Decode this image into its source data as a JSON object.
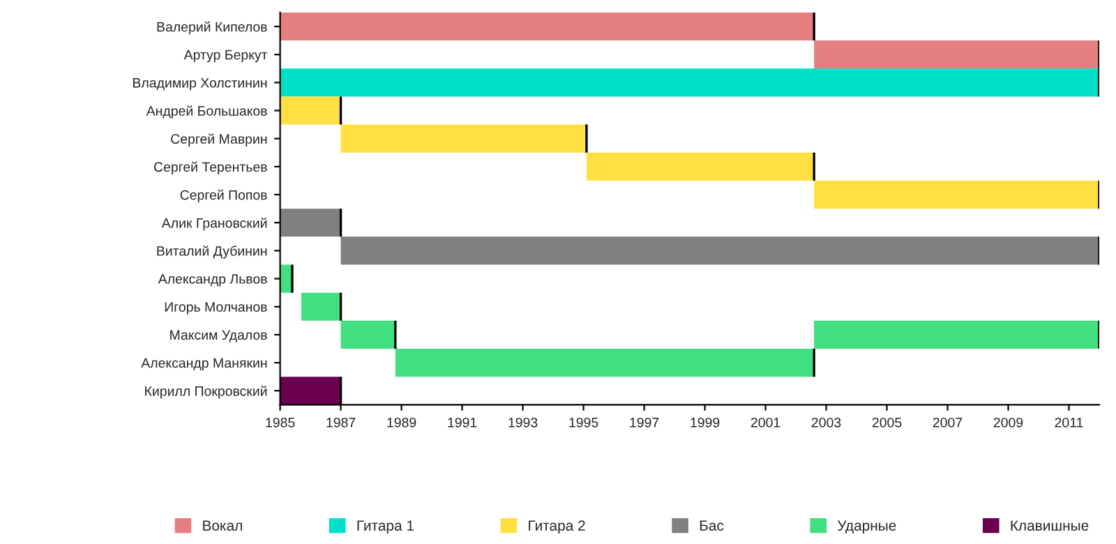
{
  "chart_data": {
    "type": "bar",
    "orientation": "horizontal",
    "categories": [
      "Валерий Кипелов",
      "Артур Беркут",
      "Владимир Холстинин",
      "Андрей Большаков",
      "Сергей Маврин",
      "Сергей Терентьев",
      "Сергей Попов",
      "Алик Грановский",
      "Виталий Дубинин",
      "Александр Львов",
      "Игорь Молчанов",
      "Максим Удалов",
      "Александр Манякин",
      "Кирилл Покровский"
    ],
    "series": [
      {
        "name": "Вокал",
        "color": "#e57f7f",
        "base": [
          1985,
          2002.6,
          null,
          null,
          null,
          null,
          null,
          null,
          null,
          null,
          null,
          null,
          null,
          null
        ],
        "values": [
          17.6,
          9.4,
          null,
          null,
          null,
          null,
          null,
          null,
          null,
          null,
          null,
          null,
          null,
          null
        ]
      },
      {
        "name": "Гитара 1",
        "color": "#00e0c8",
        "base": [
          null,
          null,
          1985,
          null,
          null,
          null,
          null,
          null,
          null,
          null,
          null,
          null,
          null,
          null
        ],
        "values": [
          null,
          null,
          27,
          null,
          null,
          null,
          null,
          null,
          null,
          null,
          null,
          null,
          null,
          null
        ]
      },
      {
        "name": "Гитара 2",
        "color": "#ffe040",
        "base": [
          null,
          null,
          null,
          1985,
          1987,
          1995.1,
          2002.6,
          null,
          null,
          null,
          null,
          null,
          null,
          null
        ],
        "values": [
          null,
          null,
          null,
          2,
          8.1,
          7.5,
          9.4,
          null,
          null,
          null,
          null,
          null,
          null,
          null
        ]
      },
      {
        "name": "Бас",
        "color": "#808080",
        "base": [
          null,
          null,
          null,
          null,
          null,
          null,
          null,
          1985,
          1987,
          null,
          null,
          null,
          null,
          null
        ],
        "values": [
          null,
          null,
          null,
          null,
          null,
          null,
          null,
          2,
          25,
          null,
          null,
          null,
          null,
          null
        ]
      },
      {
        "name": "Ударные",
        "color": "#40e080",
        "base": [
          null,
          null,
          null,
          null,
          null,
          null,
          null,
          null,
          null,
          1985,
          1985.7,
          1987,
          1988.8,
          null
        ],
        "values": [
          null,
          null,
          null,
          null,
          null,
          null,
          null,
          null,
          null,
          0.4,
          1.3,
          1.8,
          13.8,
          null
        ]
      },
      {
        "color": "#40e080",
        "base": [
          null,
          null,
          null,
          null,
          null,
          null,
          null,
          null,
          null,
          null,
          null,
          2002.6,
          null,
          null
        ],
        "values": [
          null,
          null,
          null,
          null,
          null,
          null,
          null,
          null,
          null,
          null,
          null,
          9.4,
          null,
          null
        ]
      },
      {
        "name": "Клавишные",
        "color": "#6b0050",
        "base": [
          null,
          null,
          null,
          null,
          null,
          null,
          null,
          null,
          null,
          null,
          null,
          null,
          null,
          1985
        ],
        "values": [
          null,
          null,
          null,
          null,
          null,
          null,
          null,
          null,
          null,
          null,
          null,
          null,
          null,
          2
        ]
      }
    ],
    "xlim": [
      1985,
      2012
    ],
    "xticks": [
      1985,
      1987,
      1989,
      1991,
      1993,
      1995,
      1997,
      1999,
      2001,
      2003,
      2005,
      2007,
      2009,
      2011
    ],
    "grid": false,
    "legend": "bottom"
  }
}
